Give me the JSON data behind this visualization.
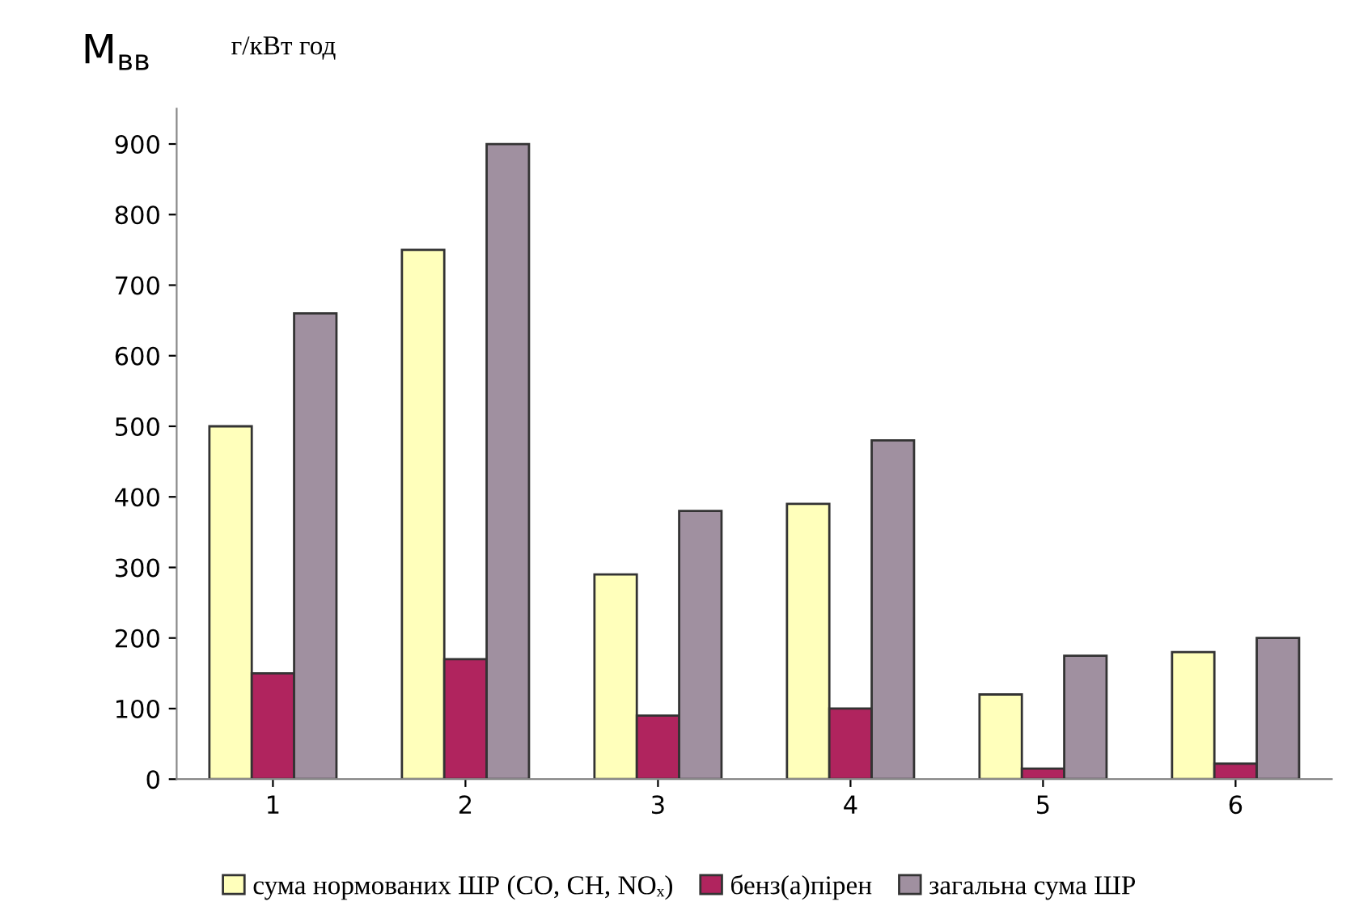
{
  "chart_data": {
    "type": "bar",
    "title": "M$_{вв}$",
    "ylabel": "г/кВт год",
    "categories": [
      "1",
      "2",
      "3",
      "4",
      "5",
      "6"
    ],
    "series": [
      {
        "name": "сума нормованих ШР (CO, CH, NOₓ)",
        "color": "#ffffbb",
        "values": [
          500,
          750,
          290,
          390,
          120,
          180
        ]
      },
      {
        "name": "бенз(а)пірен",
        "color": "#b0245e",
        "values": [
          150,
          170,
          90,
          100,
          15,
          22
        ]
      },
      {
        "name": "загальна сума ШР",
        "color": "#a090a0",
        "values": [
          660,
          900,
          380,
          480,
          175,
          200
        ]
      }
    ],
    "ylim": [
      0,
      950
    ],
    "yticks": [
      0,
      100,
      200,
      300,
      400,
      500,
      600,
      700,
      800,
      900
    ],
    "grid": false,
    "legend": "bottom"
  }
}
